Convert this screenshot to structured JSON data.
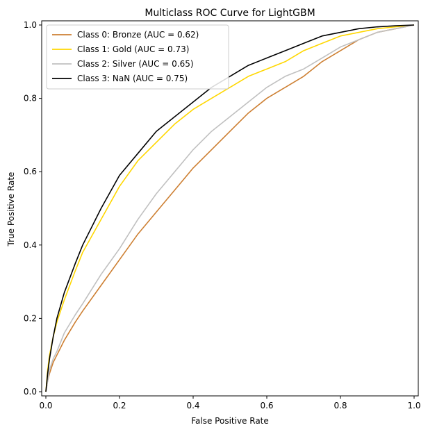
{
  "chart_data": {
    "type": "line",
    "title": "Multiclass ROC Curve for LightGBM",
    "xlabel": "False Positive Rate",
    "ylabel": "True Positive Rate",
    "xlim": [
      0,
      1
    ],
    "ylim": [
      0,
      1
    ],
    "xticks": [
      "0.0",
      "0.2",
      "0.4",
      "0.6",
      "0.8",
      "1.0"
    ],
    "yticks": [
      "0.0",
      "0.2",
      "0.4",
      "0.6",
      "0.8",
      "1.0"
    ],
    "grid": false,
    "legend_position": "top-left",
    "series": [
      {
        "name": "Class 0: Bronze (AUC = 0.62)",
        "color": "#cd7f32",
        "x": [
          0,
          0.005,
          0.01,
          0.02,
          0.03,
          0.05,
          0.08,
          0.1,
          0.15,
          0.2,
          0.25,
          0.3,
          0.35,
          0.4,
          0.45,
          0.5,
          0.55,
          0.6,
          0.65,
          0.7,
          0.75,
          0.8,
          0.85,
          0.9,
          0.95,
          1.0
        ],
        "y": [
          0,
          0.03,
          0.05,
          0.08,
          0.1,
          0.14,
          0.19,
          0.22,
          0.29,
          0.36,
          0.43,
          0.49,
          0.55,
          0.61,
          0.66,
          0.71,
          0.76,
          0.8,
          0.83,
          0.86,
          0.9,
          0.93,
          0.96,
          0.98,
          0.99,
          1.0
        ]
      },
      {
        "name": "Class 1: Gold (AUC = 0.73)",
        "color": "#ffd700",
        "x": [
          0,
          0.005,
          0.01,
          0.02,
          0.03,
          0.05,
          0.08,
          0.1,
          0.15,
          0.2,
          0.25,
          0.3,
          0.35,
          0.4,
          0.45,
          0.5,
          0.55,
          0.6,
          0.65,
          0.7,
          0.75,
          0.8,
          0.85,
          0.9,
          0.95,
          1.0
        ],
        "y": [
          0,
          0.06,
          0.1,
          0.15,
          0.19,
          0.25,
          0.33,
          0.38,
          0.47,
          0.56,
          0.63,
          0.68,
          0.73,
          0.77,
          0.8,
          0.83,
          0.86,
          0.88,
          0.9,
          0.93,
          0.95,
          0.97,
          0.98,
          0.99,
          0.995,
          1.0
        ]
      },
      {
        "name": "Class 2: Silver (AUC = 0.65)",
        "color": "#c0c0c0",
        "x": [
          0,
          0.005,
          0.01,
          0.02,
          0.03,
          0.05,
          0.08,
          0.1,
          0.15,
          0.2,
          0.25,
          0.3,
          0.35,
          0.4,
          0.45,
          0.5,
          0.55,
          0.6,
          0.65,
          0.7,
          0.75,
          0.8,
          0.85,
          0.9,
          0.95,
          1.0
        ],
        "y": [
          0,
          0.03,
          0.06,
          0.09,
          0.11,
          0.16,
          0.21,
          0.24,
          0.32,
          0.39,
          0.47,
          0.54,
          0.6,
          0.66,
          0.71,
          0.75,
          0.79,
          0.83,
          0.86,
          0.88,
          0.91,
          0.94,
          0.96,
          0.98,
          0.99,
          1.0
        ]
      },
      {
        "name": "Class 3: NaN (AUC = 0.75)",
        "color": "#000000",
        "x": [
          0,
          0.005,
          0.01,
          0.02,
          0.03,
          0.05,
          0.08,
          0.1,
          0.15,
          0.2,
          0.25,
          0.3,
          0.35,
          0.4,
          0.45,
          0.5,
          0.55,
          0.6,
          0.65,
          0.7,
          0.75,
          0.8,
          0.85,
          0.9,
          0.95,
          1.0
        ],
        "y": [
          0,
          0.05,
          0.09,
          0.15,
          0.2,
          0.27,
          0.35,
          0.4,
          0.5,
          0.59,
          0.65,
          0.71,
          0.75,
          0.79,
          0.83,
          0.86,
          0.89,
          0.91,
          0.93,
          0.95,
          0.97,
          0.98,
          0.99,
          0.995,
          0.998,
          1.0
        ]
      }
    ]
  }
}
